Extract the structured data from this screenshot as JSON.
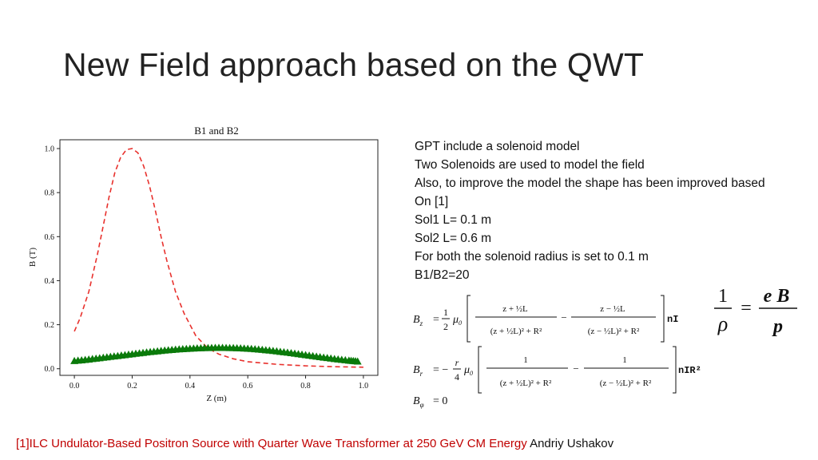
{
  "slide": {
    "title": "New Field approach based on the QWT",
    "info_lines": [
      "GPT include a solenoid model",
      "Two Solenoids are used to model the field",
      "Also, to improve the model the shape has been improved based",
      "On [1]",
      "Sol1 L= 0.1 m",
      "Sol2 L= 0.6 m",
      "For both the solenoid radius is set to 0.1 m",
      "B1/B2=20"
    ],
    "footer": {
      "reference": "[1]ILC Undulator-Based Positron Source with Quarter Wave Transformer at 250 GeV CM Energy",
      "author": "Andriy Ushakov"
    }
  },
  "equations": {
    "bz": {
      "lhs": "B",
      "lhs_sub": "z",
      "one": "1",
      "two": "2",
      "mu": "μ",
      "mu_sub": "0",
      "num1": "z + ½L",
      "num2": "z − ½L",
      "den1": "(z + ½L)² + R²",
      "den2": "(z − ½L)² + R²",
      "minus": "−",
      "suffix": "nI",
      "exp_half": "½"
    },
    "br": {
      "lhs": "B",
      "lhs_sub": "r",
      "r": "r",
      "four": "4",
      "mu": "μ",
      "mu_sub": "0",
      "num": "1",
      "den1": "(z + ½L)² + R²",
      "den2": "(z − ½L)² + R²",
      "minus": "−",
      "suffix": "nIR²",
      "exp_32": "3/2"
    },
    "bphi": {
      "lhs": "B",
      "lhs_sub": "φ",
      "rhs": "= 0"
    },
    "radius": {
      "one": "1",
      "rho": "ρ",
      "eq": "=",
      "e": "e",
      "B": "B",
      "p": "p"
    }
  },
  "chart_data": {
    "type": "line",
    "title": "B1 and B2",
    "xlabel": "Z (m)",
    "ylabel": "B (T)",
    "xlim": [
      -0.05,
      1.05
    ],
    "ylim": [
      -0.03,
      1.04
    ],
    "xticks": [
      "0.0",
      "0.2",
      "0.4",
      "0.6",
      "0.8",
      "1.0"
    ],
    "yticks": [
      "0.0",
      "0.2",
      "0.4",
      "0.6",
      "0.8",
      "1.0"
    ],
    "grid": false,
    "legend": "none",
    "series": [
      {
        "style": "dashed",
        "color": "#e8312d",
        "x": [
          0.0,
          0.02,
          0.05,
          0.08,
          0.1,
          0.12,
          0.14,
          0.16,
          0.18,
          0.2,
          0.22,
          0.24,
          0.26,
          0.28,
          0.3,
          0.32,
          0.35,
          0.38,
          0.42,
          0.46,
          0.5,
          0.55,
          0.6,
          0.7,
          0.8,
          0.9,
          1.0
        ],
        "values": [
          0.17,
          0.23,
          0.35,
          0.52,
          0.65,
          0.78,
          0.89,
          0.96,
          0.995,
          1.0,
          0.98,
          0.92,
          0.83,
          0.72,
          0.6,
          0.49,
          0.35,
          0.25,
          0.15,
          0.095,
          0.066,
          0.045,
          0.032,
          0.02,
          0.013,
          0.009,
          0.007
        ]
      },
      {
        "style": "triangle-markers",
        "color": "#0a7a0a",
        "x": [
          0.0,
          0.05,
          0.1,
          0.15,
          0.2,
          0.25,
          0.3,
          0.35,
          0.4,
          0.45,
          0.5,
          0.55,
          0.6,
          0.65,
          0.7,
          0.75,
          0.8,
          0.85,
          0.9,
          0.95,
          0.98
        ],
        "values": [
          0.032,
          0.039,
          0.047,
          0.055,
          0.063,
          0.071,
          0.078,
          0.084,
          0.088,
          0.091,
          0.092,
          0.091,
          0.088,
          0.083,
          0.076,
          0.068,
          0.059,
          0.05,
          0.041,
          0.034,
          0.03
        ]
      }
    ]
  }
}
